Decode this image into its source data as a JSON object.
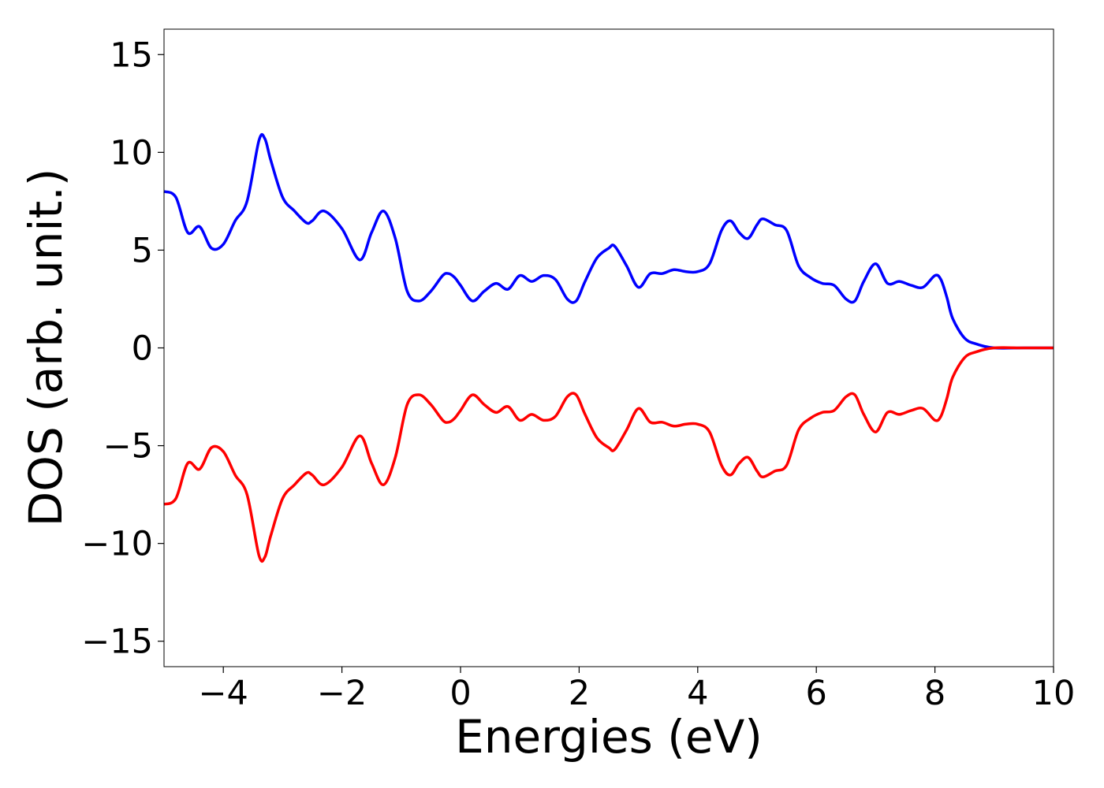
{
  "chart_data": {
    "type": "line",
    "title": "",
    "xlabel": "Energies (eV)",
    "ylabel": "DOS (arb. unit.)",
    "xlim": [
      -5,
      10
    ],
    "ylim": [
      -16.3,
      16.3
    ],
    "xticks": [
      -4,
      -2,
      0,
      2,
      4,
      6,
      8,
      10
    ],
    "xtick_labels": [
      "−4",
      "−2",
      "0",
      "2",
      "4",
      "6",
      "8",
      "10"
    ],
    "yticks": [
      -15,
      -10,
      -5,
      0,
      5,
      10,
      15
    ],
    "ytick_labels": [
      "−15",
      "−10",
      "−5",
      "0",
      "5",
      "10",
      "15"
    ],
    "grid": false,
    "legend": "none",
    "series": [
      {
        "color": "#0000ff",
        "x": [
          -5,
          -4.8,
          -4.6,
          -4.4,
          -4.2,
          -4.0,
          -3.8,
          -3.6,
          -3.4,
          -3.3,
          -3.2,
          -3.0,
          -2.8,
          -2.6,
          -2.5,
          -2.3,
          -2.0,
          -1.7,
          -1.5,
          -1.3,
          -1.1,
          -0.9,
          -0.7,
          -0.5,
          -0.3,
          -0.2,
          -0.1,
          0.0,
          0.2,
          0.4,
          0.6,
          0.8,
          1.0,
          1.2,
          1.4,
          1.6,
          1.8,
          1.95,
          2.1,
          2.3,
          2.5,
          2.6,
          2.8,
          3.0,
          3.2,
          3.4,
          3.6,
          3.8,
          4.0,
          4.2,
          4.4,
          4.55,
          4.7,
          4.85,
          5.0,
          5.1,
          5.3,
          5.5,
          5.7,
          5.9,
          6.1,
          6.3,
          6.5,
          6.65,
          6.8,
          7.0,
          7.2,
          7.4,
          7.6,
          7.8,
          8.0,
          8.1,
          8.2,
          8.3,
          8.5,
          8.7,
          9.0,
          9.5,
          10.0
        ],
        "y": [
          8.0,
          7.7,
          5.9,
          6.2,
          5.1,
          5.3,
          6.5,
          7.5,
          10.6,
          10.7,
          9.6,
          7.7,
          7.0,
          6.4,
          6.5,
          7.0,
          6.1,
          4.5,
          5.9,
          7.0,
          5.6,
          2.9,
          2.4,
          2.9,
          3.7,
          3.8,
          3.6,
          3.2,
          2.4,
          2.9,
          3.3,
          3.0,
          3.7,
          3.4,
          3.7,
          3.5,
          2.5,
          2.4,
          3.4,
          4.6,
          5.1,
          5.2,
          4.2,
          3.1,
          3.8,
          3.8,
          4.0,
          3.9,
          3.9,
          4.3,
          6.0,
          6.5,
          5.9,
          5.6,
          6.3,
          6.6,
          6.3,
          6.0,
          4.2,
          3.6,
          3.3,
          3.2,
          2.5,
          2.4,
          3.4,
          4.3,
          3.3,
          3.4,
          3.2,
          3.1,
          3.7,
          3.5,
          2.6,
          1.5,
          0.5,
          0.2,
          0.0,
          0.0,
          0.0
        ]
      },
      {
        "color": "#ff0000",
        "x": [
          -5,
          -4.8,
          -4.6,
          -4.4,
          -4.2,
          -4.0,
          -3.8,
          -3.6,
          -3.4,
          -3.3,
          -3.2,
          -3.0,
          -2.8,
          -2.6,
          -2.5,
          -2.3,
          -2.0,
          -1.7,
          -1.5,
          -1.3,
          -1.1,
          -0.9,
          -0.7,
          -0.5,
          -0.3,
          -0.2,
          -0.1,
          0.0,
          0.2,
          0.4,
          0.6,
          0.8,
          1.0,
          1.2,
          1.4,
          1.6,
          1.8,
          1.95,
          2.1,
          2.3,
          2.5,
          2.6,
          2.8,
          3.0,
          3.2,
          3.4,
          3.6,
          3.8,
          4.0,
          4.2,
          4.4,
          4.55,
          4.7,
          4.85,
          5.0,
          5.1,
          5.3,
          5.5,
          5.7,
          5.9,
          6.1,
          6.3,
          6.5,
          6.65,
          6.8,
          7.0,
          7.2,
          7.4,
          7.6,
          7.8,
          8.0,
          8.1,
          8.2,
          8.3,
          8.5,
          8.7,
          9.0,
          9.5,
          10.0
        ],
        "y": [
          -8.0,
          -7.7,
          -5.9,
          -6.2,
          -5.1,
          -5.3,
          -6.5,
          -7.5,
          -10.6,
          -10.7,
          -9.6,
          -7.7,
          -7.0,
          -6.4,
          -6.5,
          -7.0,
          -6.1,
          -4.5,
          -5.9,
          -7.0,
          -5.6,
          -2.9,
          -2.4,
          -2.9,
          -3.7,
          -3.8,
          -3.6,
          -3.2,
          -2.4,
          -2.9,
          -3.3,
          -3.0,
          -3.7,
          -3.4,
          -3.7,
          -3.5,
          -2.5,
          -2.4,
          -3.4,
          -4.6,
          -5.1,
          -5.2,
          -4.2,
          -3.1,
          -3.8,
          -3.8,
          -4.0,
          -3.9,
          -3.9,
          -4.3,
          -6.0,
          -6.5,
          -5.9,
          -5.6,
          -6.3,
          -6.6,
          -6.3,
          -6.0,
          -4.2,
          -3.6,
          -3.3,
          -3.2,
          -2.5,
          -2.4,
          -3.4,
          -4.3,
          -3.3,
          -3.4,
          -3.2,
          -3.1,
          -3.7,
          -3.5,
          -2.6,
          -1.5,
          -0.5,
          -0.2,
          0.0,
          0.0,
          0.0
        ]
      }
    ]
  }
}
